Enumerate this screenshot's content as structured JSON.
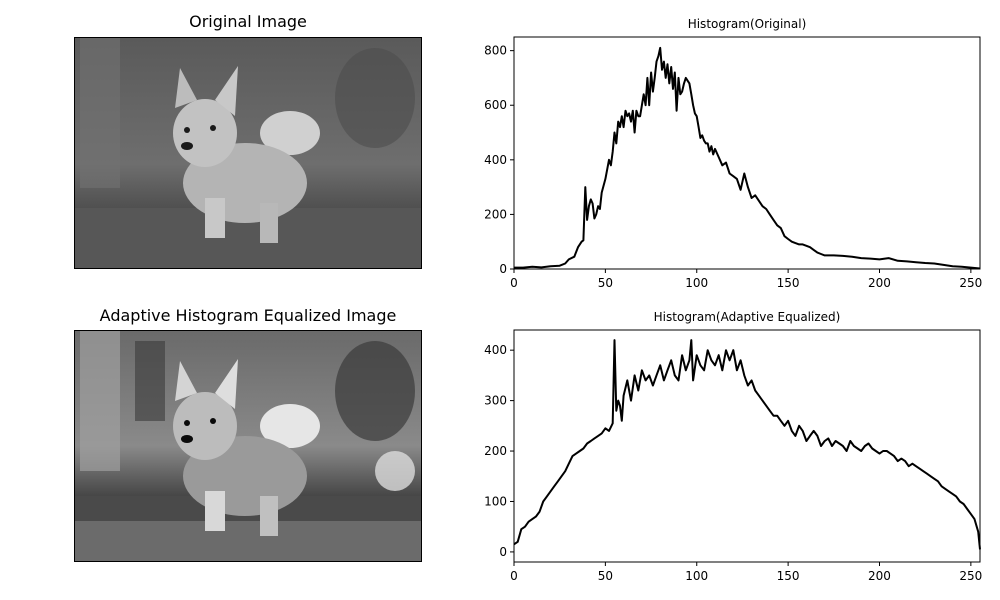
{
  "panels": {
    "original_image": {
      "title": "Original Image"
    },
    "equalized_image": {
      "title": "Adaptive Histogram Equalized Image"
    }
  },
  "chart_data": [
    {
      "type": "line",
      "title": "Histogram(Original)",
      "xlabel": "",
      "ylabel": "",
      "xlim": [
        0,
        255
      ],
      "ylim": [
        0,
        850
      ],
      "xticks": [
        0,
        50,
        100,
        150,
        200,
        250
      ],
      "yticks": [
        0,
        200,
        400,
        600,
        800
      ],
      "line_color": "#000000",
      "grid": false,
      "x": [
        0,
        5,
        10,
        15,
        20,
        25,
        28,
        30,
        33,
        35,
        37,
        38,
        39,
        40,
        41,
        42,
        43,
        44,
        45,
        46,
        47,
        48,
        50,
        52,
        53,
        54,
        55,
        56,
        57,
        58,
        59,
        60,
        61,
        62,
        63,
        64,
        65,
        66,
        67,
        68,
        69,
        70,
        71,
        72,
        73,
        74,
        75,
        76,
        77,
        78,
        79,
        80,
        81,
        82,
        83,
        84,
        85,
        86,
        87,
        88,
        89,
        90,
        91,
        92,
        93,
        94,
        95,
        96,
        97,
        98,
        99,
        100,
        101,
        102,
        103,
        104,
        105,
        106,
        107,
        108,
        109,
        110,
        112,
        114,
        116,
        118,
        120,
        122,
        124,
        126,
        128,
        130,
        132,
        134,
        136,
        138,
        140,
        142,
        144,
        146,
        148,
        150,
        152,
        154,
        156,
        158,
        160,
        162,
        164,
        166,
        168,
        170,
        175,
        180,
        185,
        190,
        195,
        200,
        205,
        210,
        215,
        220,
        225,
        230,
        235,
        240,
        245,
        250,
        255
      ],
      "y": [
        5,
        5,
        8,
        6,
        10,
        12,
        20,
        35,
        45,
        80,
        100,
        105,
        300,
        180,
        230,
        255,
        240,
        185,
        200,
        230,
        220,
        280,
        330,
        400,
        380,
        430,
        500,
        460,
        540,
        520,
        560,
        520,
        580,
        560,
        570,
        540,
        580,
        500,
        580,
        560,
        560,
        600,
        640,
        600,
        700,
        600,
        720,
        650,
        700,
        760,
        780,
        810,
        730,
        760,
        700,
        750,
        680,
        740,
        660,
        720,
        580,
        700,
        640,
        650,
        680,
        700,
        690,
        680,
        640,
        600,
        570,
        560,
        520,
        480,
        490,
        470,
        460,
        460,
        430,
        450,
        420,
        440,
        410,
        380,
        390,
        350,
        340,
        330,
        290,
        350,
        300,
        260,
        270,
        250,
        230,
        220,
        200,
        180,
        160,
        150,
        120,
        110,
        100,
        95,
        90,
        90,
        85,
        80,
        70,
        60,
        55,
        50,
        50,
        48,
        45,
        40,
        38,
        35,
        40,
        30,
        28,
        25,
        22,
        20,
        15,
        10,
        8,
        5,
        2
      ]
    },
    {
      "type": "line",
      "title": "Histogram(Adaptive Equalized)",
      "xlabel": "",
      "ylabel": "",
      "xlim": [
        0,
        255
      ],
      "ylim": [
        -20,
        440
      ],
      "xticks": [
        0,
        50,
        100,
        150,
        200,
        250
      ],
      "yticks": [
        0,
        100,
        200,
        300,
        400
      ],
      "line_color": "#000000",
      "grid": false,
      "x": [
        0,
        2,
        4,
        6,
        8,
        10,
        12,
        14,
        16,
        18,
        20,
        22,
        24,
        26,
        28,
        30,
        32,
        34,
        36,
        38,
        40,
        42,
        44,
        46,
        48,
        50,
        52,
        54,
        55,
        56,
        57,
        58,
        59,
        60,
        62,
        64,
        66,
        68,
        70,
        72,
        74,
        76,
        78,
        80,
        82,
        84,
        86,
        88,
        90,
        92,
        94,
        96,
        97,
        98,
        100,
        102,
        104,
        106,
        108,
        110,
        112,
        114,
        116,
        118,
        120,
        122,
        124,
        126,
        128,
        130,
        132,
        134,
        136,
        138,
        140,
        142,
        144,
        146,
        148,
        150,
        152,
        154,
        156,
        158,
        160,
        162,
        164,
        166,
        168,
        170,
        172,
        174,
        176,
        178,
        180,
        182,
        184,
        186,
        188,
        190,
        192,
        194,
        196,
        198,
        200,
        202,
        204,
        206,
        208,
        210,
        212,
        214,
        216,
        218,
        220,
        222,
        224,
        226,
        228,
        230,
        232,
        234,
        236,
        238,
        240,
        242,
        244,
        246,
        248,
        250,
        252,
        254,
        255
      ],
      "y": [
        15,
        20,
        45,
        50,
        60,
        65,
        70,
        80,
        100,
        110,
        120,
        130,
        140,
        150,
        160,
        175,
        190,
        195,
        200,
        205,
        215,
        220,
        225,
        230,
        235,
        245,
        240,
        255,
        420,
        280,
        300,
        290,
        260,
        310,
        340,
        300,
        350,
        320,
        360,
        340,
        350,
        330,
        350,
        370,
        340,
        360,
        380,
        350,
        340,
        390,
        360,
        380,
        420,
        340,
        390,
        370,
        360,
        400,
        380,
        370,
        390,
        360,
        400,
        380,
        400,
        360,
        380,
        350,
        330,
        340,
        320,
        310,
        300,
        290,
        280,
        270,
        270,
        260,
        250,
        260,
        240,
        230,
        250,
        240,
        220,
        230,
        240,
        230,
        210,
        220,
        225,
        210,
        220,
        215,
        210,
        200,
        220,
        210,
        205,
        200,
        210,
        215,
        205,
        200,
        195,
        200,
        200,
        195,
        190,
        180,
        185,
        180,
        170,
        175,
        170,
        165,
        160,
        155,
        150,
        145,
        140,
        130,
        125,
        120,
        115,
        110,
        100,
        95,
        85,
        75,
        65,
        40,
        5
      ]
    }
  ]
}
